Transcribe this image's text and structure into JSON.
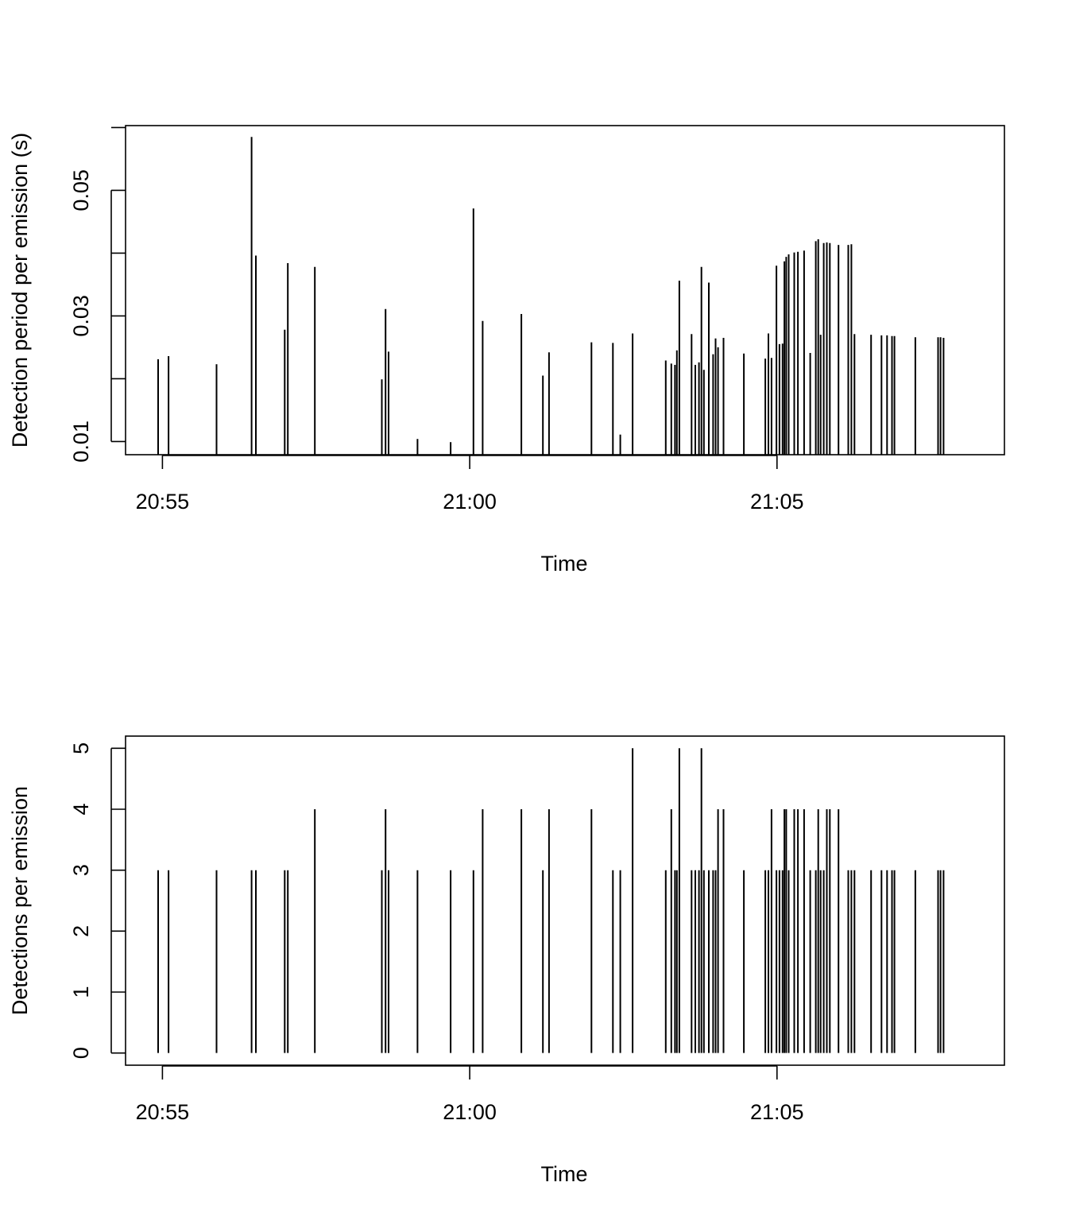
{
  "chart_data": [
    {
      "type": "bar",
      "subtype": "vertical-lines",
      "title": "",
      "xlabel": "Time",
      "ylabel": "Detection period per emission (s)",
      "xticks": [
        "20:55",
        "21:00",
        "21:05"
      ],
      "yticks": [
        "0.01",
        "0.03",
        "0.05"
      ],
      "ylim": [
        0.0079,
        0.0603
      ],
      "xlim_minutes": [
        -0.6,
        13.7
      ],
      "x_origin_label": "20:55",
      "x_unit": "minutes after 20:55",
      "grid": false,
      "series": [
        {
          "x": [
            -0.07,
            0.1,
            0.88,
            1.45,
            1.52,
            1.99,
            2.04,
            2.48,
            3.57,
            3.63,
            3.68,
            4.15,
            4.69,
            5.06,
            5.21,
            5.84,
            6.19,
            6.29,
            6.98,
            7.33,
            7.45,
            7.65,
            8.19,
            8.28,
            8.34,
            8.37,
            8.41,
            8.61,
            8.67,
            8.73,
            8.77,
            8.81,
            8.89,
            8.96,
            9.0,
            9.04,
            9.13,
            9.46,
            9.81,
            9.86,
            9.91,
            9.99,
            10.04,
            10.09,
            10.12,
            10.15,
            10.19,
            10.28,
            10.34,
            10.44,
            10.54,
            10.63,
            10.67,
            10.71,
            10.76,
            10.81,
            10.86,
            11.0,
            11.16,
            11.21,
            11.26,
            11.53,
            11.7,
            11.79,
            11.87,
            11.91,
            12.25,
            12.62,
            12.66,
            12.71
          ],
          "values": [
            0.0231,
            0.0236,
            0.0223,
            0.0585,
            0.0396,
            0.0278,
            0.0384,
            0.0378,
            0.0199,
            0.0311,
            0.0243,
            0.0104,
            0.0099,
            0.0471,
            0.0292,
            0.0303,
            0.0205,
            0.0242,
            0.0258,
            0.0257,
            0.0111,
            0.0272,
            0.0229,
            0.0224,
            0.0222,
            0.0245,
            0.0356,
            0.0271,
            0.0222,
            0.0226,
            0.0378,
            0.0214,
            0.0353,
            0.0239,
            0.0264,
            0.025,
            0.0265,
            0.024,
            0.0232,
            0.0272,
            0.0233,
            0.038,
            0.0255,
            0.0256,
            0.0387,
            0.0394,
            0.0398,
            0.0401,
            0.0402,
            0.0404,
            0.0241,
            0.0419,
            0.0422,
            0.027,
            0.0416,
            0.0417,
            0.0416,
            0.0413,
            0.0413,
            0.0414,
            0.0271,
            0.027,
            0.0269,
            0.0269,
            0.0268,
            0.0268,
            0.0266,
            0.0266,
            0.0266,
            0.0265
          ]
        }
      ]
    },
    {
      "type": "bar",
      "subtype": "vertical-lines",
      "title": "",
      "xlabel": "Time",
      "ylabel": "Detections per emission",
      "xticks": [
        "20:55",
        "21:00",
        "21:05"
      ],
      "yticks": [
        "0",
        "1",
        "2",
        "3",
        "4",
        "5"
      ],
      "ylim": [
        -0.2,
        5.2
      ],
      "xlim_minutes": [
        -0.6,
        13.7
      ],
      "x_origin_label": "20:55",
      "x_unit": "minutes after 20:55",
      "grid": false,
      "series": [
        {
          "x": [
            -0.07,
            0.1,
            0.88,
            1.45,
            1.52,
            1.99,
            2.04,
            2.48,
            3.57,
            3.63,
            3.68,
            4.15,
            4.69,
            5.06,
            5.21,
            5.84,
            6.19,
            6.29,
            6.98,
            7.33,
            7.45,
            7.65,
            8.19,
            8.28,
            8.34,
            8.37,
            8.41,
            8.61,
            8.67,
            8.73,
            8.77,
            8.81,
            8.89,
            8.96,
            9.0,
            9.04,
            9.13,
            9.46,
            9.81,
            9.86,
            9.91,
            9.99,
            10.04,
            10.09,
            10.12,
            10.15,
            10.19,
            10.28,
            10.34,
            10.44,
            10.54,
            10.63,
            10.67,
            10.71,
            10.76,
            10.81,
            10.86,
            11.0,
            11.16,
            11.21,
            11.26,
            11.53,
            11.7,
            11.79,
            11.87,
            11.91,
            12.25,
            12.62,
            12.66,
            12.71
          ],
          "values": [
            3,
            3,
            3,
            3,
            3,
            3,
            3,
            4,
            3,
            4,
            3,
            3,
            3,
            3,
            4,
            4,
            3,
            4,
            4,
            3,
            3,
            5,
            3,
            4,
            3,
            3,
            5,
            3,
            3,
            3,
            5,
            3,
            3,
            3,
            3,
            4,
            4,
            3,
            3,
            3,
            4,
            3,
            3,
            3,
            4,
            4,
            3,
            4,
            4,
            4,
            3,
            3,
            4,
            3,
            3,
            4,
            4,
            4,
            3,
            3,
            3,
            3,
            3,
            3,
            3,
            3,
            3,
            3,
            3,
            3
          ]
        }
      ]
    }
  ]
}
